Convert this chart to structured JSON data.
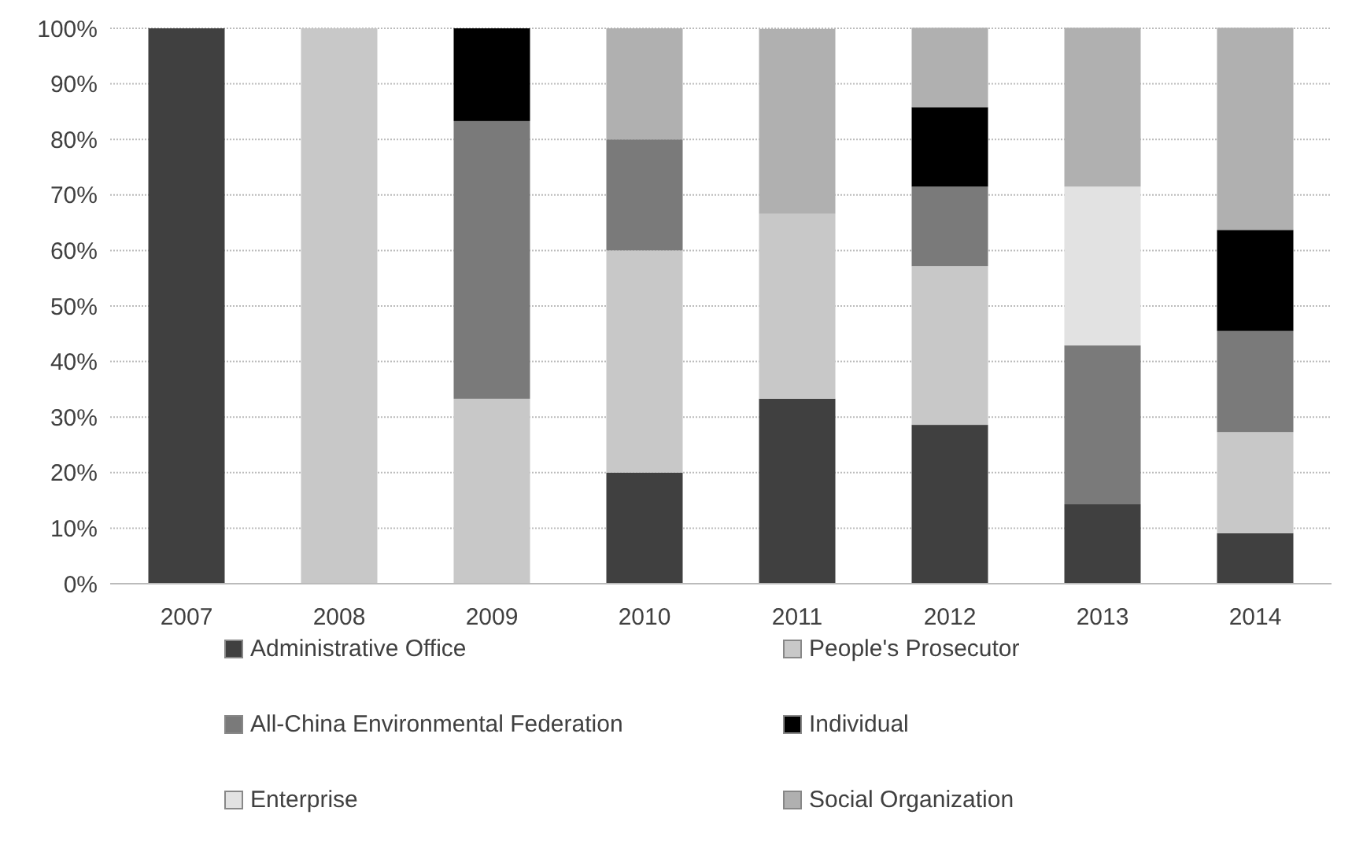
{
  "chart_data": {
    "type": "bar",
    "stacked": true,
    "categories": [
      "2007",
      "2008",
      "2009",
      "2010",
      "2011",
      "2012",
      "2013",
      "2014"
    ],
    "series": [
      {
        "name": "Administrative Office",
        "color": "#404040",
        "values": [
          100,
          0,
          0,
          20,
          33.3,
          28.6,
          14.3,
          9.1
        ]
      },
      {
        "name": "People's Prosecutor",
        "color": "#c8c8c8",
        "values": [
          0,
          100,
          33.3,
          40,
          33.3,
          28.6,
          0,
          18.2
        ]
      },
      {
        "name": "All-China Environmental Federation",
        "color": "#7a7a7a",
        "values": [
          0,
          0,
          50,
          20,
          0,
          14.3,
          28.6,
          18.2
        ]
      },
      {
        "name": "Individual",
        "color": "#000000",
        "values": [
          0,
          0,
          16.7,
          0,
          0,
          14.3,
          0,
          18.2
        ]
      },
      {
        "name": "Enterprise",
        "color": "#e2e2e2",
        "values": [
          0,
          0,
          0,
          0,
          0,
          0,
          28.6,
          0
        ]
      },
      {
        "name": "Social Organization",
        "color": "#b0b0b0",
        "values": [
          0,
          0,
          0,
          20,
          33.3,
          14.3,
          28.6,
          36.4
        ]
      }
    ],
    "ylim": [
      0,
      100
    ],
    "yticks": [
      {
        "value": 0,
        "label": "0%"
      },
      {
        "value": 10,
        "label": "10%"
      },
      {
        "value": 20,
        "label": "20%"
      },
      {
        "value": 30,
        "label": "30%"
      },
      {
        "value": 40,
        "label": "40%"
      },
      {
        "value": 50,
        "label": "50%"
      },
      {
        "value": 60,
        "label": "60%"
      },
      {
        "value": 70,
        "label": "70%"
      },
      {
        "value": 80,
        "label": "80%"
      },
      {
        "value": 90,
        "label": "90%"
      },
      {
        "value": 100,
        "label": "100%"
      }
    ],
    "grid": "y",
    "legend": "bottom"
  }
}
